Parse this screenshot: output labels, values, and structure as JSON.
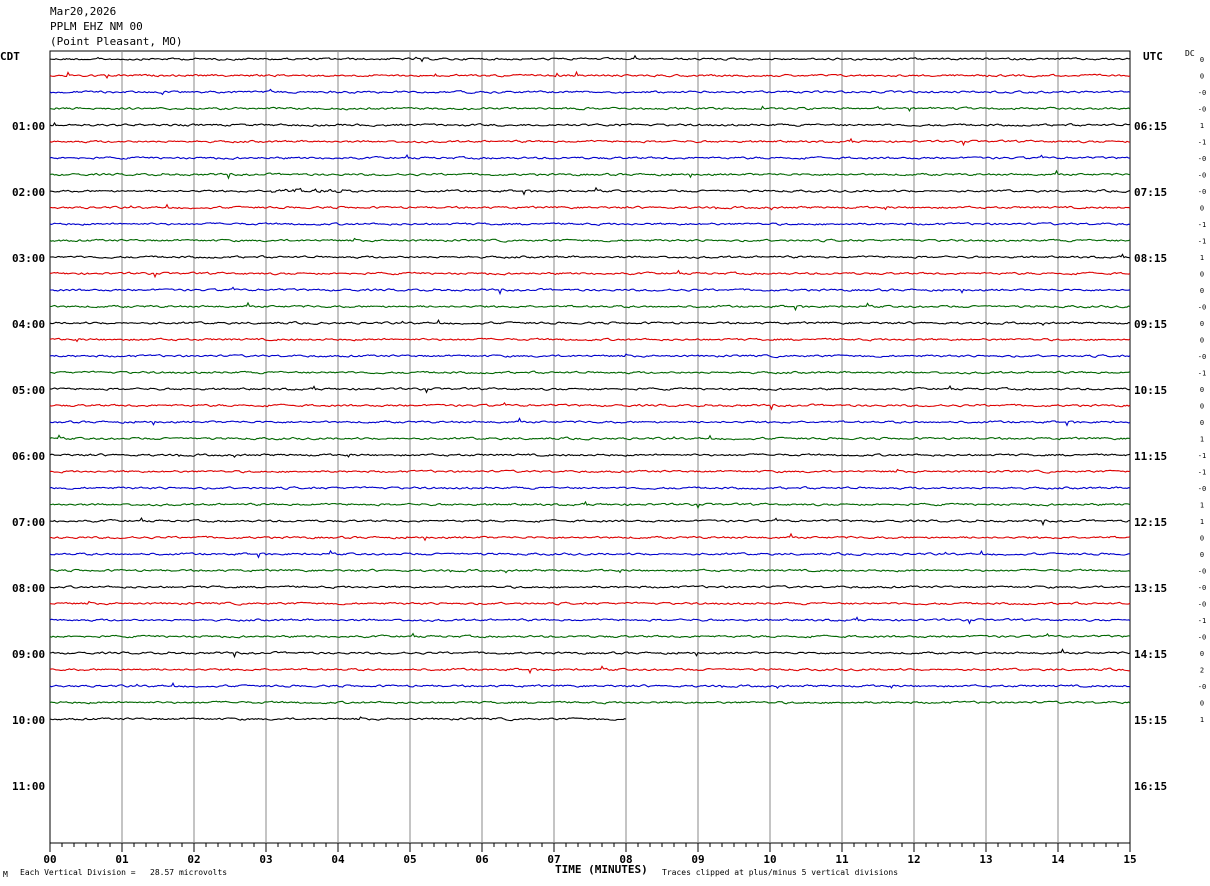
{
  "header": {
    "date": "Mar20,2026",
    "station": "PPLM EHZ NM 00",
    "location": "(Point Pleasant, MO)"
  },
  "left_axis_title": "CDT",
  "right_axis_title": "UTC",
  "dc_label": "DC",
  "footer": {
    "corner_mark": "M",
    "scale_note": "Each Vertical Division =   28.57 microvolts",
    "x_title": "TIME (MINUTES)",
    "clip_note": "Traces clipped at plus/minus 5 vertical divisions"
  },
  "colors": {
    "trace_cycle": [
      "#000000",
      "#dd0000",
      "#0000cc",
      "#006600"
    ],
    "gridline": "#888888"
  },
  "chart_data": {
    "type": "line",
    "title": "PPLM EHZ NM 00",
    "xlabel": "TIME (MINUTES)",
    "xlim": [
      0,
      15
    ],
    "x_ticks": [
      "00",
      "01",
      "02",
      "03",
      "04",
      "05",
      "06",
      "07",
      "08",
      "09",
      "10",
      "11",
      "12",
      "13",
      "14",
      "15"
    ],
    "minutes_per_trace": 15,
    "trace_count": 41,
    "last_trace_end_minute": 8,
    "left_hour_labels": [
      "01:00",
      "02:00",
      "03:00",
      "04:00",
      "05:00",
      "06:00",
      "07:00",
      "08:00",
      "09:00",
      "10:00",
      "11:00"
    ],
    "right_hour_labels": [
      "06:15",
      "07:15",
      "08:15",
      "09:15",
      "10:15",
      "11:15",
      "12:15",
      "13:15",
      "14:15",
      "15:15",
      "16:15"
    ],
    "dc_offsets": [
      "0",
      "0",
      "-0",
      "-0",
      "1",
      "-1",
      "-0",
      "-0",
      "-0",
      "0",
      "-1",
      "-1",
      "1",
      "0",
      "0",
      "-0",
      "0",
      "0",
      "-0",
      "-1",
      "0",
      "0",
      "0",
      "1",
      "-1",
      "-1",
      "-0",
      "1",
      "1",
      "0",
      "0",
      "-0",
      "-0",
      "-0",
      "-1",
      "-0",
      "0",
      "2",
      "-0",
      "0",
      "1"
    ],
    "vertical_division_microvolts": 28.57,
    "clip_divisions": 5
  }
}
